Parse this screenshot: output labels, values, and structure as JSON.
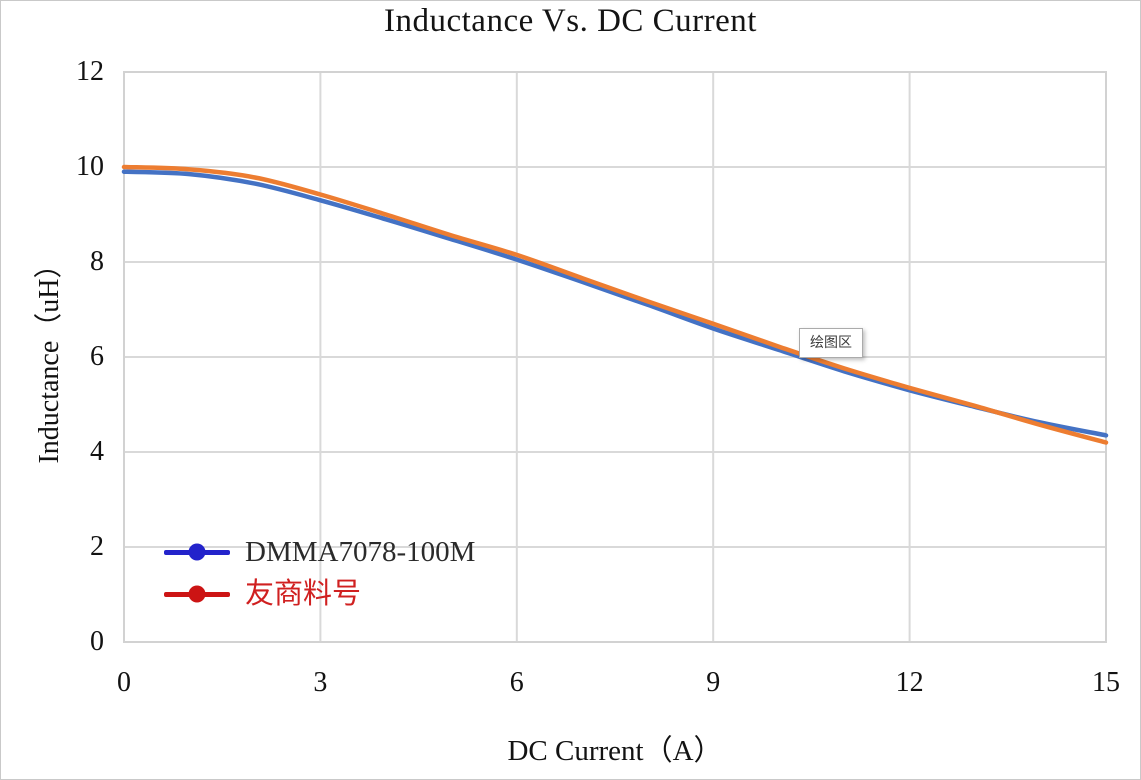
{
  "title": "Inductance Vs. DC Current",
  "axes": {
    "x": {
      "label": "DC Current（A）"
    },
    "y": {
      "label": "Inductance（uH）"
    }
  },
  "legend": {
    "items": [
      {
        "label": "DMMA7078-100M",
        "marker_color": "#2323CB",
        "text_color": "#2b2b2b"
      },
      {
        "label": "友商料号",
        "marker_color": "#CC1414",
        "text_color": "#D02020"
      }
    ]
  },
  "tooltip": {
    "label": "绘图区"
  },
  "colors": {
    "gridline": "#D9D9D9",
    "plot_border": "#D2D2D2",
    "series_blue": "#4472C4",
    "series_orange": "#ED7D31",
    "text": "#121212"
  },
  "chart_data": {
    "type": "line",
    "title": "Inductance Vs. DC Current",
    "xlabel": "DC Current（A）",
    "ylabel": "Inductance（uH）",
    "xlim": [
      0,
      15
    ],
    "ylim": [
      0,
      12
    ],
    "xticks": [
      0,
      3,
      6,
      9,
      12,
      15
    ],
    "yticks": [
      0,
      2,
      4,
      6,
      8,
      10,
      12
    ],
    "grid": true,
    "legend_position": "inside-bottom-left",
    "x": [
      0,
      1,
      2,
      3,
      4,
      5,
      6,
      7,
      8,
      9,
      10,
      11,
      12,
      13,
      14,
      15
    ],
    "series": [
      {
        "name": "DMMA7078-100M",
        "color": "#4472C4",
        "values": [
          9.9,
          9.85,
          9.65,
          9.3,
          8.9,
          8.48,
          8.05,
          7.58,
          7.1,
          6.6,
          6.15,
          5.7,
          5.3,
          4.95,
          4.62,
          4.35
        ]
      },
      {
        "name": "友商料号",
        "color": "#ED7D31",
        "values": [
          10.0,
          9.95,
          9.78,
          9.42,
          9.0,
          8.56,
          8.15,
          7.66,
          7.17,
          6.7,
          6.22,
          5.76,
          5.35,
          4.97,
          4.57,
          4.2
        ]
      }
    ]
  }
}
